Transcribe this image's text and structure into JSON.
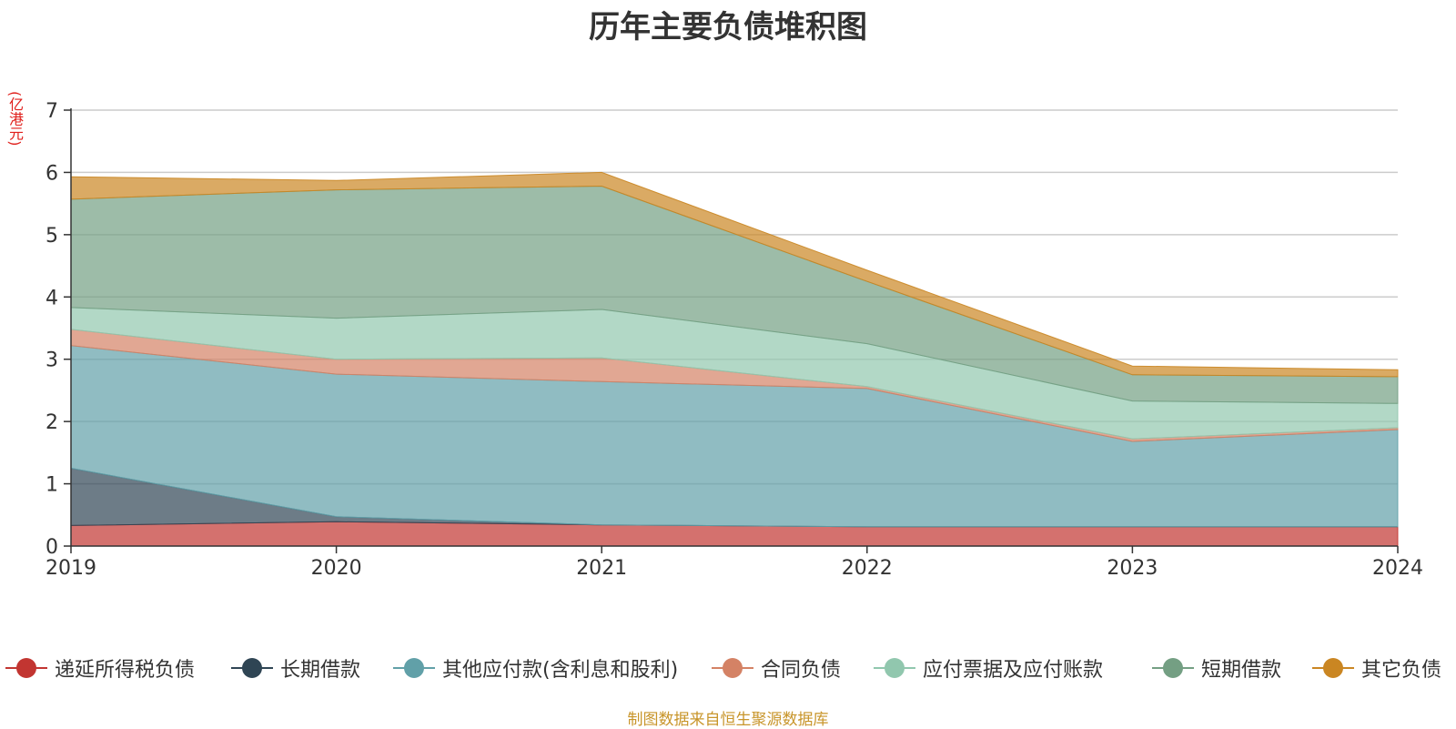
{
  "title": "历年主要负债堆积图",
  "unit": "(亿港元)",
  "source_note": "制图数据来自恒生聚源数据库",
  "chart_data": {
    "type": "area",
    "stacked": true,
    "x": [
      "2019",
      "2020",
      "2021",
      "2022",
      "2023",
      "2024"
    ],
    "ylim": [
      0,
      7
    ],
    "yticks": [
      0,
      1,
      2,
      3,
      4,
      5,
      6,
      7
    ],
    "grid": true,
    "legend_position": "bottom",
    "series": [
      {
        "name": "递延所得税负债",
        "color": "#c23531",
        "values": [
          0.33,
          0.39,
          0.34,
          0.31,
          0.31,
          0.31
        ]
      },
      {
        "name": "长期借款",
        "color": "#2f4554",
        "values": [
          0.92,
          0.08,
          0.0,
          0.0,
          0.0,
          0.0
        ]
      },
      {
        "name": "其他应付款(含利息和股利)",
        "color": "#61a0a8",
        "values": [
          1.97,
          2.29,
          2.3,
          2.22,
          1.37,
          1.56
        ]
      },
      {
        "name": "合同负债",
        "color": "#d48265",
        "values": [
          0.26,
          0.24,
          0.38,
          0.03,
          0.04,
          0.03
        ]
      },
      {
        "name": "应付票据及应付账款",
        "color": "#91c7ae",
        "values": [
          0.35,
          0.66,
          0.78,
          0.69,
          0.61,
          0.39
        ]
      },
      {
        "name": "短期借款",
        "color": "#749f83",
        "values": [
          1.74,
          2.06,
          1.98,
          1.0,
          0.42,
          0.43
        ]
      },
      {
        "name": "其它负债",
        "color": "#ca8622",
        "values": [
          0.36,
          0.15,
          0.22,
          0.18,
          0.14,
          0.11
        ]
      }
    ]
  }
}
